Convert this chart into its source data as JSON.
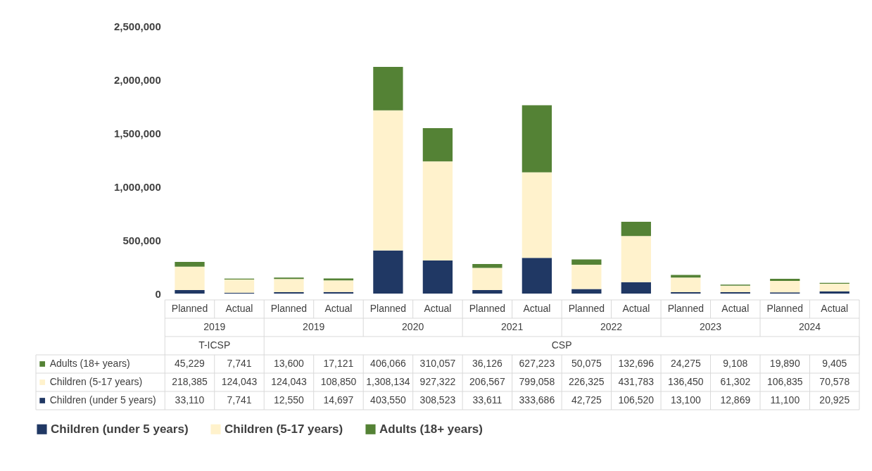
{
  "chart_data": {
    "type": "bar",
    "stacked": true,
    "categories": [
      "Planned",
      "Actual",
      "Planned",
      "Actual",
      "Planned",
      "Actual",
      "Planned",
      "Actual",
      "Planned",
      "Actual",
      "Planned",
      "Actual",
      "Planned",
      "Actual"
    ],
    "series": [
      {
        "name": "Children (under 5 years)",
        "color": "#203864",
        "values": [
          33110,
          7741,
          12550,
          14697,
          403550,
          308523,
          33611,
          333686,
          42725,
          106520,
          13100,
          12869,
          11100,
          20925
        ],
        "value_labels": [
          "33,110",
          "7,741",
          "12,550",
          "14,697",
          "403,550",
          "308,523",
          "33,611",
          "333,686",
          "42,725",
          "106,520",
          "13,100",
          "12,869",
          "11,100",
          "20,925"
        ]
      },
      {
        "name": "Children (5-17 years)",
        "color": "#fff2cc",
        "values": [
          218385,
          124043,
          124043,
          108850,
          1308134,
          927322,
          206567,
          799058,
          226325,
          431783,
          136450,
          61302,
          106835,
          70578
        ],
        "value_labels": [
          "218,385",
          "124,043",
          "124,043",
          "108,850",
          "1,308,134",
          "927,322",
          "206,567",
          "799,058",
          "226,325",
          "431,783",
          "136,450",
          "61,302",
          "106,835",
          "70,578"
        ]
      },
      {
        "name": "Adults (18+ years)",
        "color": "#548235",
        "values": [
          45229,
          7741,
          13600,
          17121,
          406066,
          310057,
          36126,
          627223,
          50075,
          132696,
          24275,
          9108,
          19890,
          9405
        ],
        "value_labels": [
          "45,229",
          "7,741",
          "13,600",
          "17,121",
          "406,066",
          "310,057",
          "36,126",
          "627,223",
          "50,075",
          "132,696",
          "24,275",
          "9,108",
          "19,890",
          "9,405"
        ]
      }
    ],
    "ylim": [
      0,
      2500000
    ],
    "yticks": [
      {
        "value": 0,
        "label": "0"
      },
      {
        "value": 500000,
        "label": "500,000"
      },
      {
        "value": 1000000,
        "label": "1,000,000"
      },
      {
        "value": 1500000,
        "label": "1,500,000"
      },
      {
        "value": 2000000,
        "label": "2,000,000"
      },
      {
        "value": 2500000,
        "label": "2,500,000"
      }
    ],
    "annotations": [
      "2019",
      "2019",
      "2020",
      "2021",
      "2022",
      "2023",
      "2024",
      "T-ICSP",
      "CSP"
    ],
    "legend": "bottom"
  }
}
